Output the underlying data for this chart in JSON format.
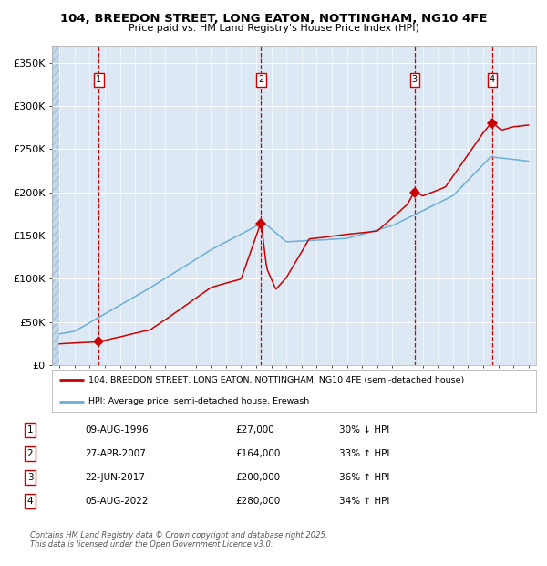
{
  "title1": "104, BREEDON STREET, LONG EATON, NOTTINGHAM, NG10 4FE",
  "title2": "Price paid vs. HM Land Registry's House Price Index (HPI)",
  "plot_bg_color": "#dce9f5",
  "red_line_color": "#cc0000",
  "blue_line_color": "#6baed6",
  "grid_color": "#ffffff",
  "dashed_line_color": "#cc0000",
  "transactions": [
    {
      "label": "1",
      "date": "09-AUG-1996",
      "year": 1996.6,
      "price": 27000,
      "pct": "30%",
      "dir": "↓"
    },
    {
      "label": "2",
      "date": "27-APR-2007",
      "year": 2007.32,
      "price": 164000,
      "pct": "33%",
      "dir": "↑"
    },
    {
      "label": "3",
      "date": "22-JUN-2017",
      "year": 2017.47,
      "price": 200000,
      "pct": "36%",
      "dir": "↑"
    },
    {
      "label": "4",
      "date": "05-AUG-2022",
      "year": 2022.59,
      "price": 280000,
      "pct": "34%",
      "dir": "↑"
    }
  ],
  "ylim": [
    0,
    370000
  ],
  "yticks": [
    0,
    50000,
    100000,
    150000,
    200000,
    250000,
    300000,
    350000
  ],
  "ytick_labels": [
    "£0",
    "£50K",
    "£100K",
    "£150K",
    "£200K",
    "£250K",
    "£300K",
    "£350K"
  ],
  "xlim_start": 1993.5,
  "xlim_end": 2025.5,
  "footer_text": "Contains HM Land Registry data © Crown copyright and database right 2025.\nThis data is licensed under the Open Government Licence v3.0.",
  "legend_red": "104, BREEDON STREET, LONG EATON, NOTTINGHAM, NG10 4FE (semi-detached house)",
  "legend_blue": "HPI: Average price, semi-detached house, Erewash"
}
